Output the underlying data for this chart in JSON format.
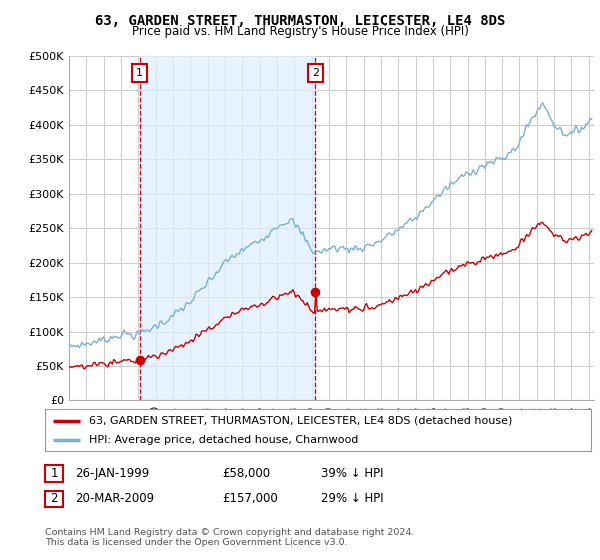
{
  "title": "63, GARDEN STREET, THURMASTON, LEICESTER, LE4 8DS",
  "subtitle": "Price paid vs. HM Land Registry's House Price Index (HPI)",
  "ylim": [
    0,
    500000
  ],
  "yticks": [
    0,
    50000,
    100000,
    150000,
    200000,
    250000,
    300000,
    350000,
    400000,
    450000,
    500000
  ],
  "ytick_labels": [
    "£0",
    "£50K",
    "£100K",
    "£150K",
    "£200K",
    "£250K",
    "£300K",
    "£350K",
    "£400K",
    "£450K",
    "£500K"
  ],
  "xlim_start": 1995.0,
  "xlim_end": 2025.3,
  "hpi_color": "#7bafd4",
  "sale_color": "#cc0000",
  "vline_color": "#cc0000",
  "shade_color": "#ddeeff",
  "grid_color": "#cccccc",
  "bg_color": "#ffffff",
  "sale1_year": 1999.07,
  "sale1_price": 58000,
  "sale2_year": 2009.22,
  "sale2_price": 157000,
  "legend_label_red": "63, GARDEN STREET, THURMASTON, LEICESTER, LE4 8DS (detached house)",
  "legend_label_blue": "HPI: Average price, detached house, Charnwood",
  "annotation1_label": "1",
  "annotation2_label": "2",
  "footer1": "Contains HM Land Registry data © Crown copyright and database right 2024.",
  "footer2": "This data is licensed under the Open Government Licence v3.0.",
  "table_row1": [
    "1",
    "26-JAN-1999",
    "£58,000",
    "39% ↓ HPI"
  ],
  "table_row2": [
    "2",
    "20-MAR-2009",
    "£157,000",
    "29% ↓ HPI"
  ]
}
